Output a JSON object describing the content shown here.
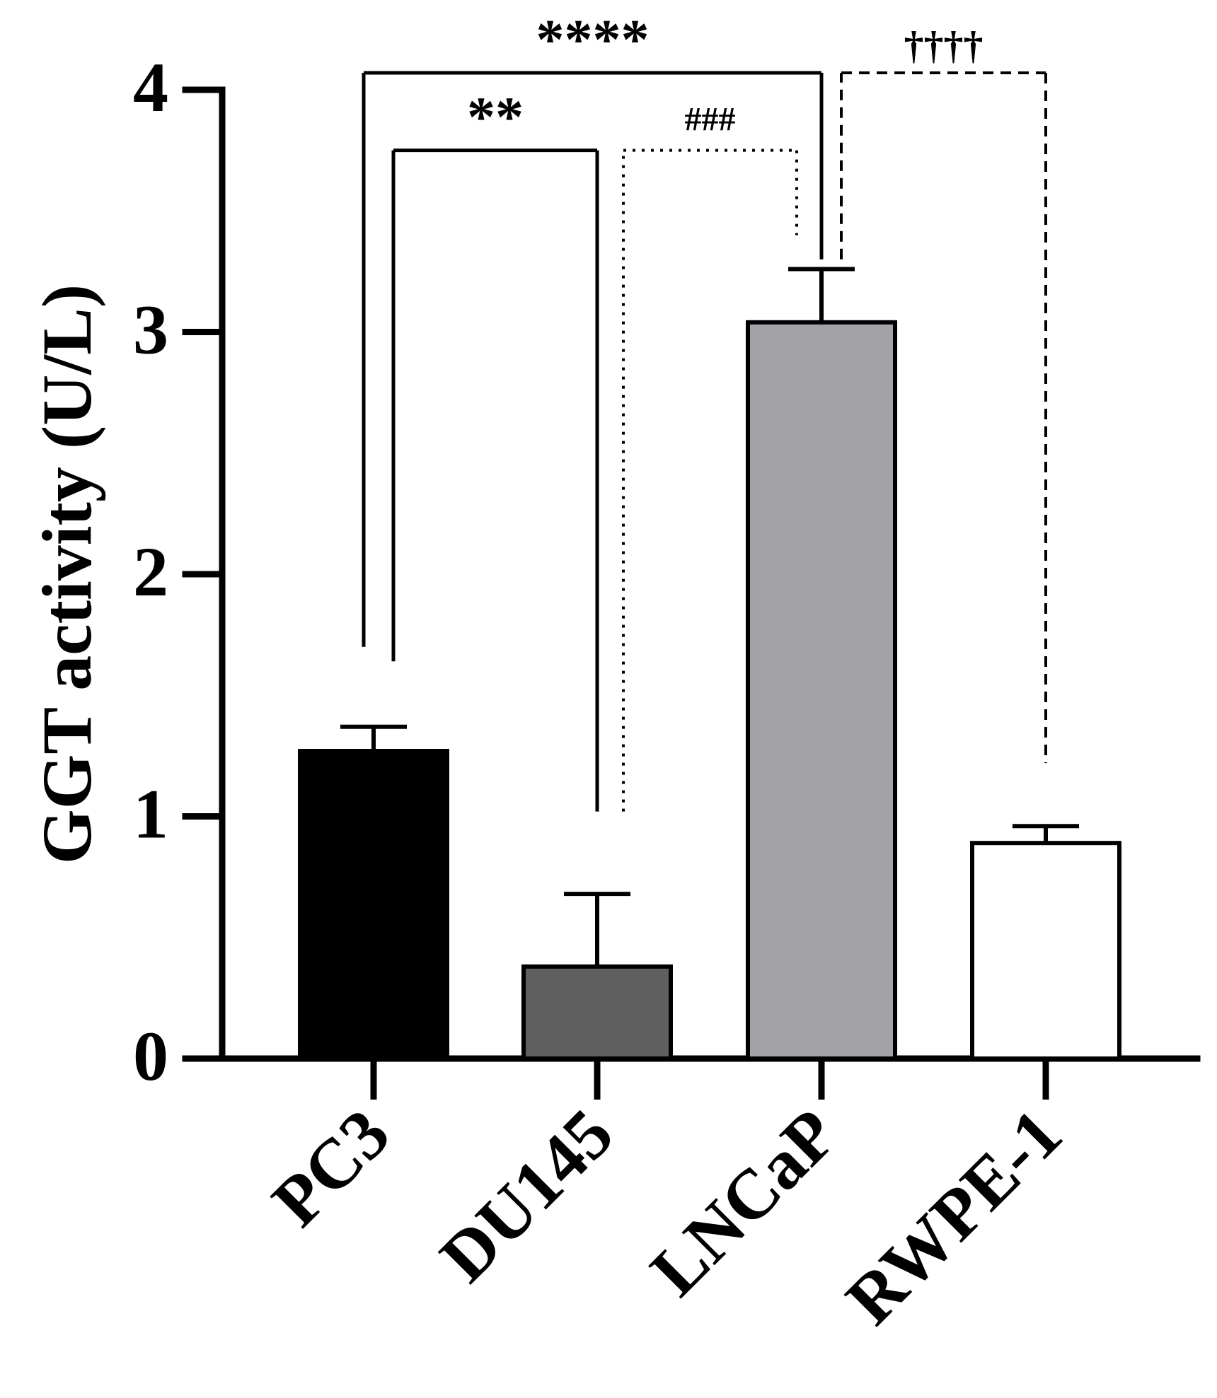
{
  "chart_data": {
    "type": "bar",
    "title": "",
    "xlabel": "",
    "ylabel": "GGT activity (U/L)",
    "categories": [
      "PC3",
      "DU145",
      "LNCaP",
      "RWPE-1"
    ],
    "values": [
      1.27,
      0.38,
      3.04,
      0.89
    ],
    "errors": [
      0.1,
      0.3,
      0.22,
      0.07
    ],
    "colors": [
      "#000000",
      "#5f5f5f",
      "#a3a3a7",
      "#ffffff"
    ],
    "ylim": [
      0,
      4
    ],
    "yticks": [
      0,
      1,
      2,
      3,
      4
    ],
    "comparisons": [
      {
        "label": "****",
        "group_a": "PC3",
        "group_b": "LNCaP",
        "line_style": "solid",
        "level": 4.07,
        "start_a": 1.7,
        "start_b": 3.3
      },
      {
        "label": "**",
        "group_a": "PC3",
        "group_b": "DU145",
        "line_style": "solid",
        "level": 3.75,
        "start_a": 1.64,
        "start_b": 1.02
      },
      {
        "label": "###",
        "group_a": "DU145",
        "group_b": "LNCaP",
        "line_style": "dotted",
        "level": 3.75,
        "start_a": 1.02,
        "start_b": 3.4
      },
      {
        "label": "††††",
        "group_a": "LNCaP",
        "group_b": "RWPE-1",
        "line_style": "dashed",
        "level": 4.07,
        "start_a": 3.3,
        "start_b": 1.22
      }
    ]
  }
}
